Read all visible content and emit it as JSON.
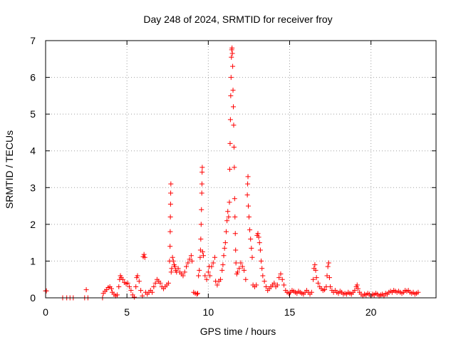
{
  "chart_data": {
    "type": "scatter",
    "title": "Day 248 of 2024, SRMTID for receiver froy",
    "xlabel": "GPS time / hours",
    "ylabel": "SRMTID / TECUs",
    "xlim": [
      0,
      24
    ],
    "ylim": [
      0,
      7
    ],
    "xticks": [
      0,
      5,
      10,
      15,
      20
    ],
    "yticks": [
      0,
      1,
      2,
      3,
      4,
      5,
      6,
      7
    ],
    "grid": true,
    "marker": "+",
    "marker_color": "#ff0000",
    "series": [
      {
        "name": "SRMTID",
        "color": "#ff0000",
        "points": [
          [
            0.0,
            0.19
          ],
          [
            0.05,
            0.19
          ],
          [
            1.05,
            0.0
          ],
          [
            1.3,
            0.0
          ],
          [
            1.5,
            0.0
          ],
          [
            1.7,
            0.0
          ],
          [
            2.4,
            0.0
          ],
          [
            2.5,
            0.22
          ],
          [
            2.6,
            0.0
          ],
          [
            3.5,
            0.0
          ],
          [
            3.55,
            0.12
          ],
          [
            3.65,
            0.18
          ],
          [
            3.75,
            0.22
          ],
          [
            3.85,
            0.28
          ],
          [
            3.95,
            0.3
          ],
          [
            4.05,
            0.25
          ],
          [
            4.1,
            0.15
          ],
          [
            4.2,
            0.1
          ],
          [
            4.3,
            0.05
          ],
          [
            4.4,
            0.08
          ],
          [
            4.5,
            0.3
          ],
          [
            4.55,
            0.5
          ],
          [
            4.6,
            0.6
          ],
          [
            4.65,
            0.55
          ],
          [
            4.75,
            0.5
          ],
          [
            4.85,
            0.42
          ],
          [
            4.95,
            0.38
          ],
          [
            5.05,
            0.4
          ],
          [
            5.15,
            0.3
          ],
          [
            5.25,
            0.2
          ],
          [
            5.35,
            0.08
          ],
          [
            5.45,
            0.02
          ],
          [
            5.55,
            0.3
          ],
          [
            5.6,
            0.55
          ],
          [
            5.65,
            0.6
          ],
          [
            5.75,
            0.45
          ],
          [
            5.85,
            0.2
          ],
          [
            5.95,
            0.05
          ],
          [
            6.0,
            1.12
          ],
          [
            6.05,
            1.18
          ],
          [
            6.1,
            1.1
          ],
          [
            6.15,
            0.15
          ],
          [
            6.25,
            0.1
          ],
          [
            6.35,
            0.15
          ],
          [
            6.45,
            0.2
          ],
          [
            6.55,
            0.15
          ],
          [
            6.65,
            0.3
          ],
          [
            6.75,
            0.4
          ],
          [
            6.85,
            0.5
          ],
          [
            6.95,
            0.45
          ],
          [
            7.05,
            0.4
          ],
          [
            7.15,
            0.3
          ],
          [
            7.25,
            0.25
          ],
          [
            7.35,
            0.3
          ],
          [
            7.45,
            0.35
          ],
          [
            7.55,
            0.4
          ],
          [
            7.62,
            1.0
          ],
          [
            7.65,
            1.4
          ],
          [
            7.66,
            1.8
          ],
          [
            7.67,
            2.2
          ],
          [
            7.68,
            2.55
          ],
          [
            7.69,
            2.85
          ],
          [
            7.7,
            3.1
          ],
          [
            7.72,
            0.7
          ],
          [
            7.75,
            0.8
          ],
          [
            7.8,
            1.1
          ],
          [
            7.85,
            1.0
          ],
          [
            7.9,
            0.9
          ],
          [
            7.95,
            0.85
          ],
          [
            8.0,
            0.75
          ],
          [
            8.05,
            0.7
          ],
          [
            8.15,
            0.8
          ],
          [
            8.25,
            0.7
          ],
          [
            8.35,
            0.65
          ],
          [
            8.45,
            0.6
          ],
          [
            8.55,
            0.7
          ],
          [
            8.65,
            0.85
          ],
          [
            8.75,
            0.95
          ],
          [
            8.85,
            1.05
          ],
          [
            8.95,
            1.15
          ],
          [
            9.0,
            1.0
          ],
          [
            9.1,
            0.15
          ],
          [
            9.2,
            0.12
          ],
          [
            9.3,
            0.1
          ],
          [
            9.35,
            0.12
          ],
          [
            9.4,
            0.6
          ],
          [
            9.45,
            0.75
          ],
          [
            9.5,
            1.1
          ],
          [
            9.52,
            1.3
          ],
          [
            9.54,
            1.6
          ],
          [
            9.56,
            2.0
          ],
          [
            9.58,
            2.4
          ],
          [
            9.6,
            2.85
          ],
          [
            9.61,
            3.1
          ],
          [
            9.62,
            3.42
          ],
          [
            9.63,
            3.55
          ],
          [
            9.65,
            1.25
          ],
          [
            9.7,
            1.15
          ],
          [
            9.8,
            0.6
          ],
          [
            9.9,
            0.5
          ],
          [
            10.0,
            0.7
          ],
          [
            10.05,
            0.85
          ],
          [
            10.1,
            0.6
          ],
          [
            10.2,
            0.85
          ],
          [
            10.3,
            0.95
          ],
          [
            10.4,
            1.1
          ],
          [
            10.45,
            0.45
          ],
          [
            10.55,
            0.35
          ],
          [
            10.65,
            0.45
          ],
          [
            10.75,
            0.5
          ],
          [
            10.85,
            0.75
          ],
          [
            10.9,
            0.9
          ],
          [
            10.95,
            1.15
          ],
          [
            11.0,
            1.35
          ],
          [
            11.05,
            1.5
          ],
          [
            11.1,
            1.8
          ],
          [
            11.15,
            2.1
          ],
          [
            11.2,
            2.35
          ],
          [
            11.25,
            2.2
          ],
          [
            11.3,
            2.6
          ],
          [
            11.32,
            3.5
          ],
          [
            11.34,
            4.2
          ],
          [
            11.36,
            4.85
          ],
          [
            11.38,
            5.5
          ],
          [
            11.4,
            6.0
          ],
          [
            11.42,
            6.55
          ],
          [
            11.44,
            6.75
          ],
          [
            11.46,
            6.8
          ],
          [
            11.48,
            6.65
          ],
          [
            11.5,
            6.3
          ],
          [
            11.52,
            5.65
          ],
          [
            11.54,
            5.2
          ],
          [
            11.56,
            4.7
          ],
          [
            11.58,
            4.1
          ],
          [
            11.6,
            3.55
          ],
          [
            11.62,
            2.7
          ],
          [
            11.64,
            2.2
          ],
          [
            11.66,
            1.75
          ],
          [
            11.68,
            1.3
          ],
          [
            11.7,
            0.95
          ],
          [
            11.75,
            0.65
          ],
          [
            11.8,
            0.7
          ],
          [
            11.9,
            0.8
          ],
          [
            12.0,
            0.95
          ],
          [
            12.1,
            0.85
          ],
          [
            12.2,
            0.75
          ],
          [
            12.3,
            0.5
          ],
          [
            12.4,
            2.8
          ],
          [
            12.42,
            3.1
          ],
          [
            12.44,
            3.3
          ],
          [
            12.46,
            2.5
          ],
          [
            12.5,
            2.2
          ],
          [
            12.55,
            1.85
          ],
          [
            12.6,
            1.6
          ],
          [
            12.65,
            1.35
          ],
          [
            12.7,
            1.1
          ],
          [
            12.75,
            0.35
          ],
          [
            12.85,
            0.3
          ],
          [
            12.95,
            0.35
          ],
          [
            13.0,
            1.7
          ],
          [
            13.05,
            1.75
          ],
          [
            13.1,
            1.65
          ],
          [
            13.15,
            1.5
          ],
          [
            13.2,
            1.3
          ],
          [
            13.25,
            1.0
          ],
          [
            13.3,
            0.8
          ],
          [
            13.35,
            0.6
          ],
          [
            13.45,
            0.45
          ],
          [
            13.55,
            0.3
          ],
          [
            13.65,
            0.2
          ],
          [
            13.75,
            0.25
          ],
          [
            13.85,
            0.3
          ],
          [
            13.95,
            0.35
          ],
          [
            14.05,
            0.4
          ],
          [
            14.15,
            0.3
          ],
          [
            14.25,
            0.35
          ],
          [
            14.35,
            0.55
          ],
          [
            14.45,
            0.65
          ],
          [
            14.55,
            0.5
          ],
          [
            14.65,
            0.35
          ],
          [
            14.75,
            0.2
          ],
          [
            14.85,
            0.15
          ],
          [
            14.95,
            0.12
          ],
          [
            15.05,
            0.15
          ],
          [
            15.15,
            0.2
          ],
          [
            15.25,
            0.18
          ],
          [
            15.35,
            0.15
          ],
          [
            15.45,
            0.12
          ],
          [
            15.55,
            0.18
          ],
          [
            15.65,
            0.15
          ],
          [
            15.75,
            0.12
          ],
          [
            15.85,
            0.1
          ],
          [
            15.95,
            0.15
          ],
          [
            16.05,
            0.2
          ],
          [
            16.15,
            0.15
          ],
          [
            16.25,
            0.1
          ],
          [
            16.35,
            0.15
          ],
          [
            16.45,
            0.5
          ],
          [
            16.5,
            0.8
          ],
          [
            16.55,
            0.9
          ],
          [
            16.6,
            0.75
          ],
          [
            16.65,
            0.55
          ],
          [
            16.75,
            0.4
          ],
          [
            16.85,
            0.3
          ],
          [
            16.95,
            0.25
          ],
          [
            17.05,
            0.2
          ],
          [
            17.15,
            0.22
          ],
          [
            17.25,
            0.3
          ],
          [
            17.3,
            0.6
          ],
          [
            17.35,
            0.85
          ],
          [
            17.4,
            0.95
          ],
          [
            17.45,
            0.55
          ],
          [
            17.5,
            0.3
          ],
          [
            17.6,
            0.2
          ],
          [
            17.7,
            0.15
          ],
          [
            17.8,
            0.2
          ],
          [
            17.9,
            0.15
          ],
          [
            18.0,
            0.12
          ],
          [
            18.1,
            0.18
          ],
          [
            18.2,
            0.15
          ],
          [
            18.3,
            0.1
          ],
          [
            18.4,
            0.12
          ],
          [
            18.5,
            0.1
          ],
          [
            18.6,
            0.15
          ],
          [
            18.7,
            0.12
          ],
          [
            18.8,
            0.1
          ],
          [
            18.9,
            0.15
          ],
          [
            19.0,
            0.2
          ],
          [
            19.1,
            0.3
          ],
          [
            19.15,
            0.35
          ],
          [
            19.2,
            0.25
          ],
          [
            19.3,
            0.15
          ],
          [
            19.4,
            0.1
          ],
          [
            19.5,
            0.05
          ],
          [
            19.6,
            0.1
          ],
          [
            19.7,
            0.08
          ],
          [
            19.8,
            0.12
          ],
          [
            19.9,
            0.1
          ],
          [
            20.0,
            0.05
          ],
          [
            20.1,
            0.1
          ],
          [
            20.2,
            0.08
          ],
          [
            20.3,
            0.12
          ],
          [
            20.4,
            0.1
          ],
          [
            20.5,
            0.05
          ],
          [
            20.6,
            0.08
          ],
          [
            20.7,
            0.1
          ],
          [
            20.8,
            0.05
          ],
          [
            20.9,
            0.12
          ],
          [
            21.0,
            0.1
          ],
          [
            21.1,
            0.15
          ],
          [
            21.2,
            0.18
          ],
          [
            21.3,
            0.15
          ],
          [
            21.4,
            0.2
          ],
          [
            21.5,
            0.18
          ],
          [
            21.6,
            0.15
          ],
          [
            21.7,
            0.18
          ],
          [
            21.8,
            0.15
          ],
          [
            21.9,
            0.12
          ],
          [
            22.0,
            0.15
          ],
          [
            22.1,
            0.2
          ],
          [
            22.2,
            0.18
          ],
          [
            22.3,
            0.2
          ],
          [
            22.4,
            0.15
          ],
          [
            22.5,
            0.12
          ],
          [
            22.6,
            0.15
          ],
          [
            22.7,
            0.1
          ],
          [
            22.8,
            0.12
          ],
          [
            22.9,
            0.15
          ]
        ]
      }
    ]
  }
}
